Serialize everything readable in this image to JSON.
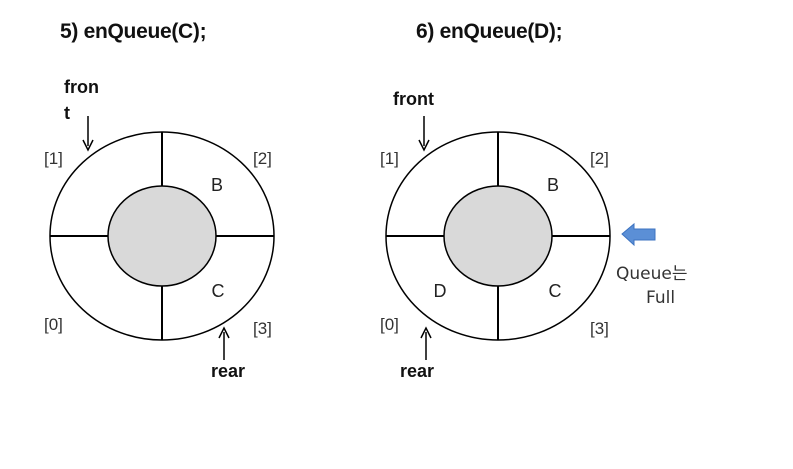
{
  "panels": [
    {
      "title": "5) enQueue(C);",
      "indices": [
        "[0]",
        "[1]",
        "[2]",
        "[3]"
      ],
      "cells": {
        "q0": "",
        "q1": "",
        "q2": "B",
        "q3": "C"
      },
      "front_label_lines": [
        "fron",
        "t"
      ],
      "rear_label": "rear"
    },
    {
      "title": "6) enQueue(D);",
      "indices": [
        "[0]",
        "[1]",
        "[2]",
        "[3]"
      ],
      "cells": {
        "q0": "D",
        "q1": "",
        "q2": "B",
        "q3": "C"
      },
      "front_label": "front",
      "rear_label": "rear",
      "status_lines": [
        "Queue는",
        "Full"
      ]
    }
  ],
  "colors": {
    "hub_fill": "#d9d9d9",
    "full_arrow": "#5b8fd6"
  }
}
